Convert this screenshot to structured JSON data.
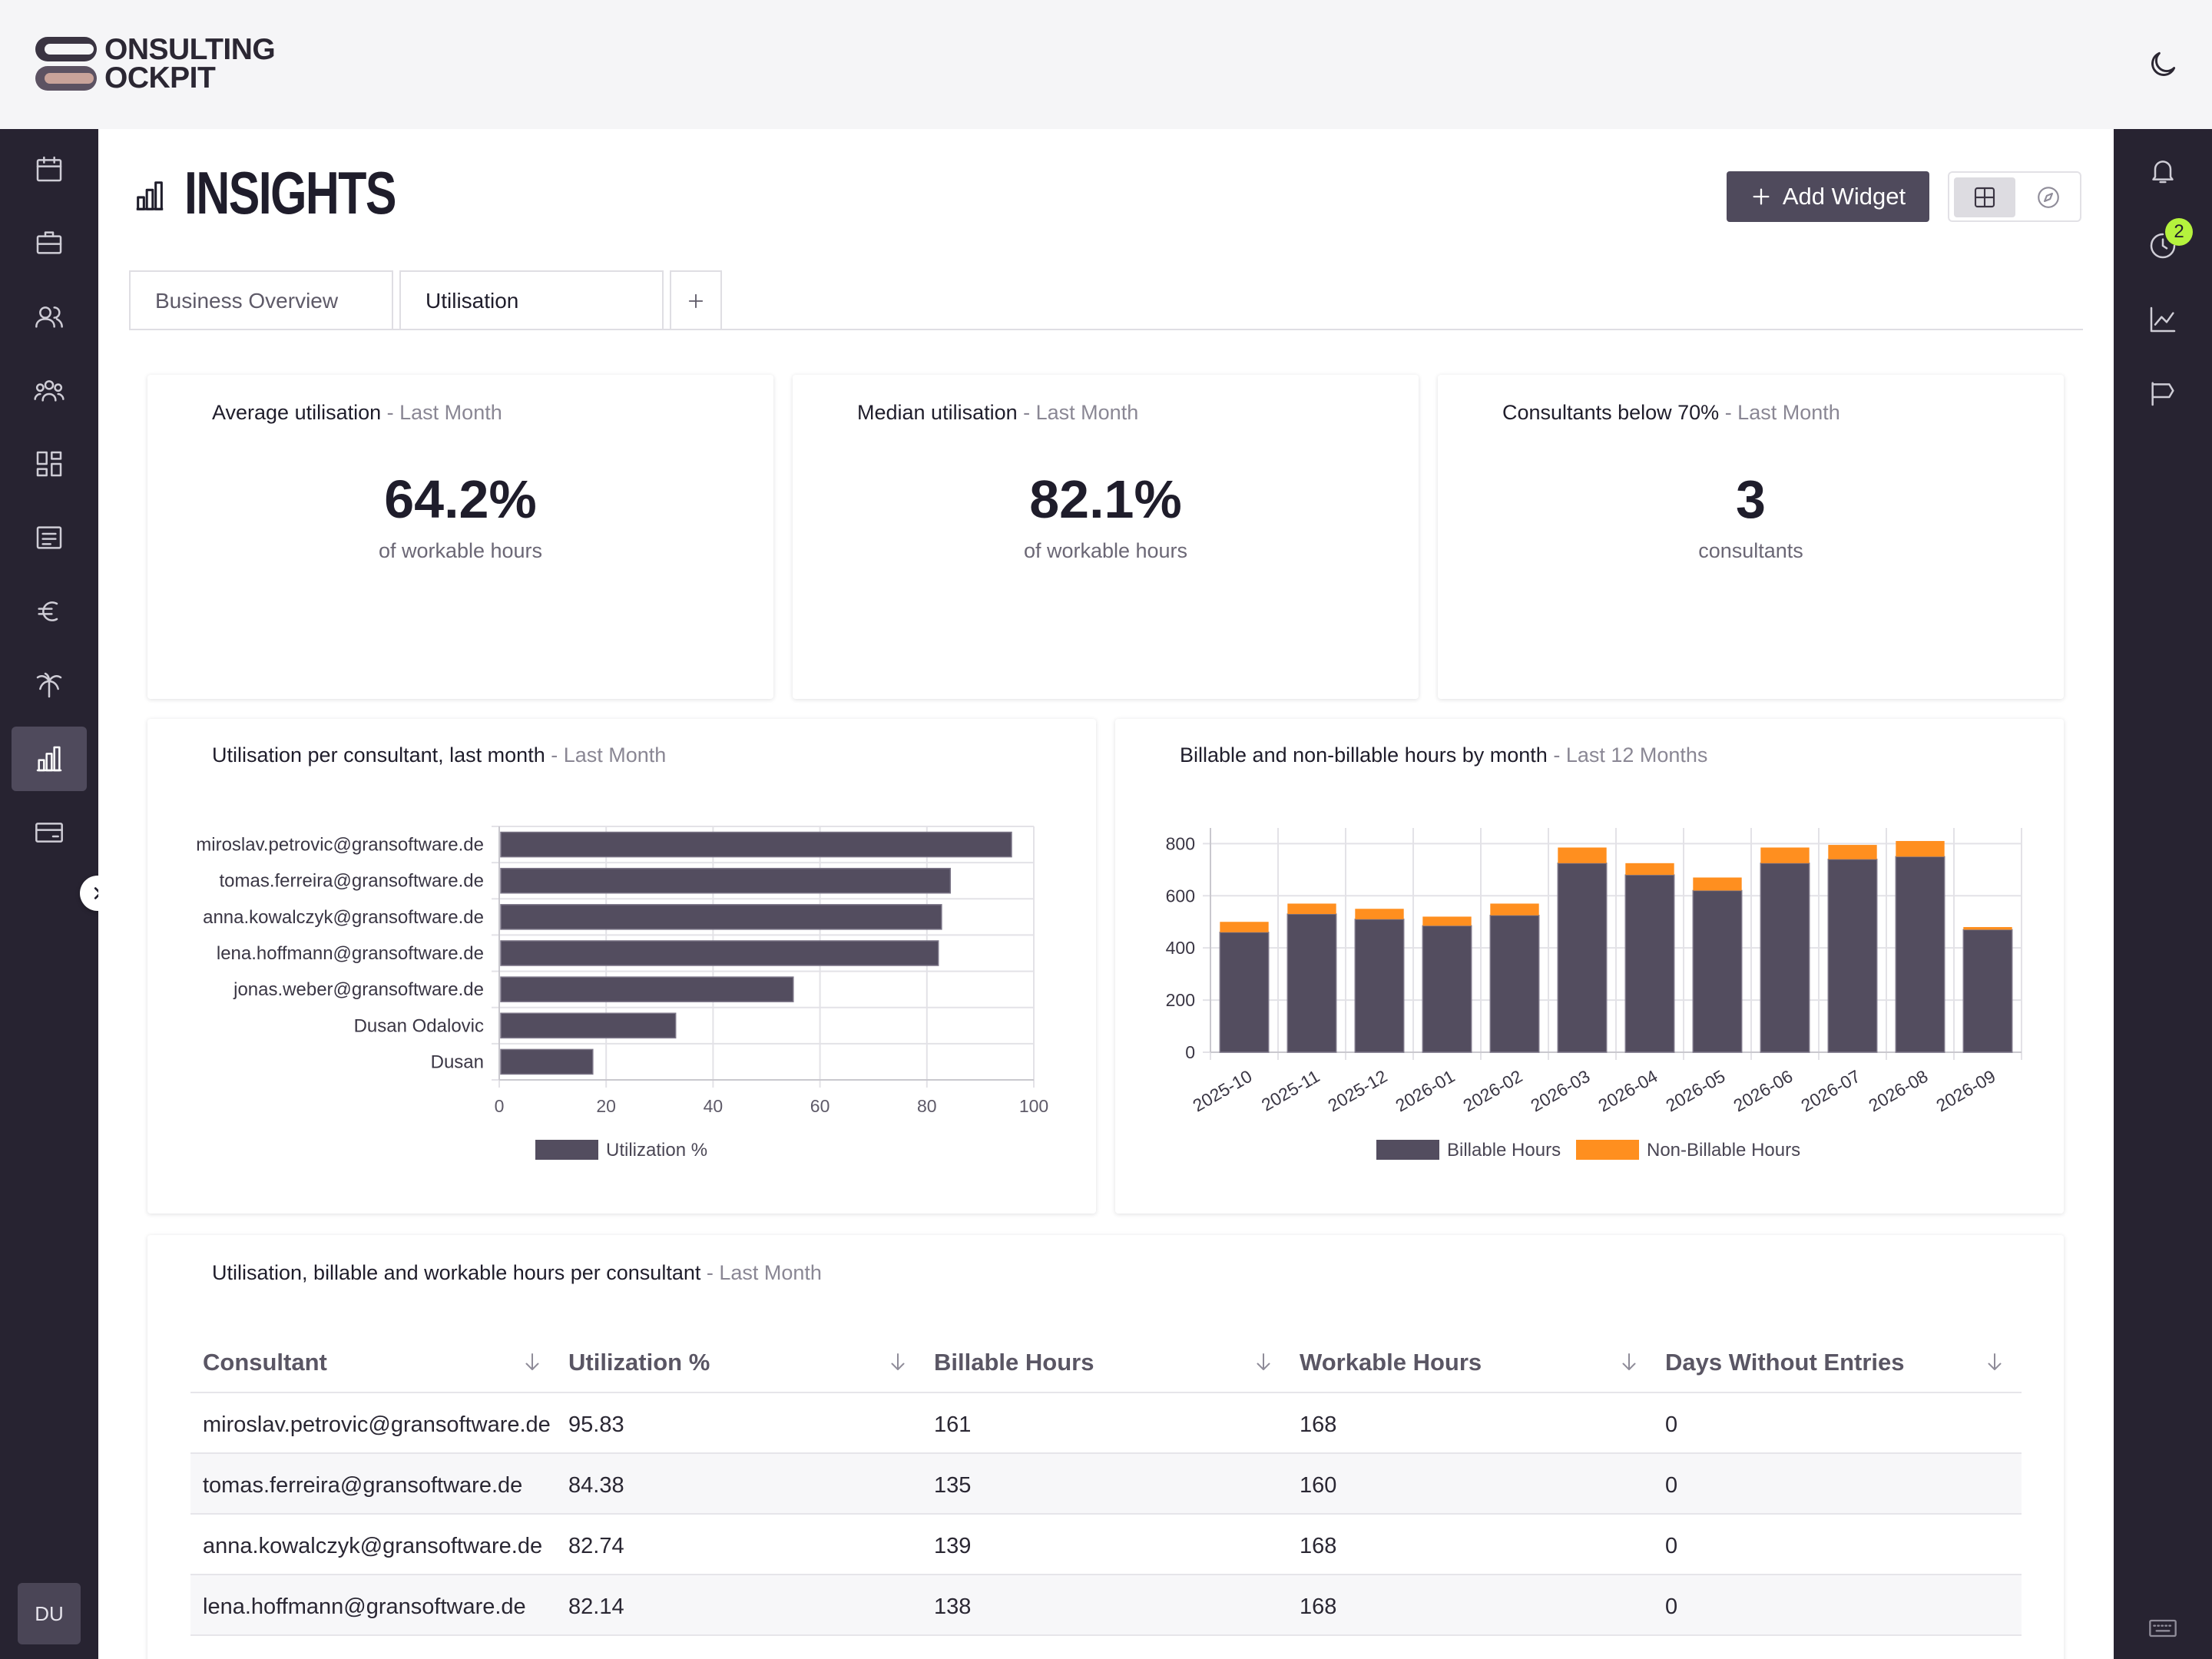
{
  "app": {
    "logo_text_line1": "ONSULTING",
    "logo_text_line2": "OCKPIT"
  },
  "header": {
    "theme_toggle_icon": "moon-icon"
  },
  "left_nav": {
    "items": [
      {
        "icon": "calendar-icon"
      },
      {
        "icon": "briefcase-icon"
      },
      {
        "icon": "users-icon"
      },
      {
        "icon": "team-icon"
      },
      {
        "icon": "board-icon"
      },
      {
        "icon": "notes-icon"
      },
      {
        "icon": "euro-icon"
      },
      {
        "icon": "palm-tree-icon"
      },
      {
        "icon": "bar-chart-icon",
        "active": true
      },
      {
        "icon": "credit-card-icon"
      }
    ],
    "avatar": "DU"
  },
  "right_nav": {
    "items": [
      {
        "icon": "bell-icon"
      },
      {
        "icon": "progress-icon",
        "badge": "2"
      },
      {
        "icon": "line-chart-icon"
      },
      {
        "icon": "megaphone-icon"
      },
      {
        "icon": "keyboard-icon"
      }
    ]
  },
  "page": {
    "title": "INSIGHTS",
    "add_widget_label": "Add Widget"
  },
  "tabs": [
    {
      "label": "Business Overview",
      "active": false
    },
    {
      "label": "Utilisation",
      "active": true
    }
  ],
  "kpis": [
    {
      "title": "Average utilisation",
      "period": "- Last Month",
      "value": "64.2%",
      "unit": "of workable hours"
    },
    {
      "title": "Median utilisation",
      "period": "- Last Month",
      "value": "82.1%",
      "unit": "of workable hours"
    },
    {
      "title": "Consultants below 70%",
      "period": "- Last Month",
      "value": "3",
      "unit": "consultants"
    }
  ],
  "charts": {
    "util_title": "Utilisation per consultant, last month",
    "util_period": "- Last Month",
    "hours_title": "Billable and non-billable hours by month",
    "hours_period": "- Last 12 Months"
  },
  "chart_data": [
    {
      "type": "bar",
      "orientation": "horizontal",
      "categories": [
        "miroslav.petrovic@gransoftware.de",
        "tomas.ferreira@gransoftware.de",
        "anna.kowalczyk@gransoftware.de",
        "lena.hoffmann@gransoftware.de",
        "jonas.weber@gransoftware.de",
        "Dusan Odalovic",
        "Dusan"
      ],
      "series": [
        {
          "name": "Utilization %",
          "values": [
            95.83,
            84.38,
            82.74,
            82.14,
            55,
            33,
            17.5
          ],
          "color": "#534d5f"
        }
      ],
      "xlim": [
        0,
        100
      ],
      "xticks": [
        "0",
        "20",
        "40",
        "60",
        "80",
        "100"
      ],
      "grid": true,
      "legend": "bottom"
    },
    {
      "type": "bar",
      "stacked": true,
      "categories": [
        "2025-10",
        "2025-11",
        "2025-12",
        "2026-01",
        "2026-02",
        "2026-03",
        "2026-04",
        "2026-05",
        "2026-06",
        "2026-07",
        "2026-08",
        "2026-09"
      ],
      "series": [
        {
          "name": "Billable Hours",
          "values": [
            460,
            530,
            510,
            485,
            525,
            725,
            680,
            620,
            725,
            740,
            750,
            470
          ],
          "color": "#534d5f"
        },
        {
          "name": "Non-Billable Hours",
          "values": [
            40,
            40,
            40,
            35,
            45,
            60,
            45,
            50,
            60,
            55,
            60,
            10
          ],
          "color": "#ff8f1f"
        }
      ],
      "ylim": [
        0,
        860
      ],
      "yticks": [
        "0",
        "200",
        "400",
        "600",
        "800"
      ],
      "grid": true,
      "legend": "bottom"
    }
  ],
  "table": {
    "title": "Utilisation, billable and workable hours per consultant",
    "period": "- Last Month",
    "columns": [
      "Consultant",
      "Utilization %",
      "Billable Hours",
      "Workable Hours",
      "Days Without Entries"
    ],
    "rows": [
      [
        "miroslav.petrovic@gransoftware.de",
        "95.83",
        "161",
        "168",
        "0"
      ],
      [
        "tomas.ferreira@gransoftware.de",
        "84.38",
        "135",
        "160",
        "0"
      ],
      [
        "anna.kowalczyk@gransoftware.de",
        "82.74",
        "139",
        "168",
        "0"
      ],
      [
        "lena.hoffmann@gransoftware.de",
        "82.14",
        "138",
        "168",
        "0"
      ]
    ]
  }
}
